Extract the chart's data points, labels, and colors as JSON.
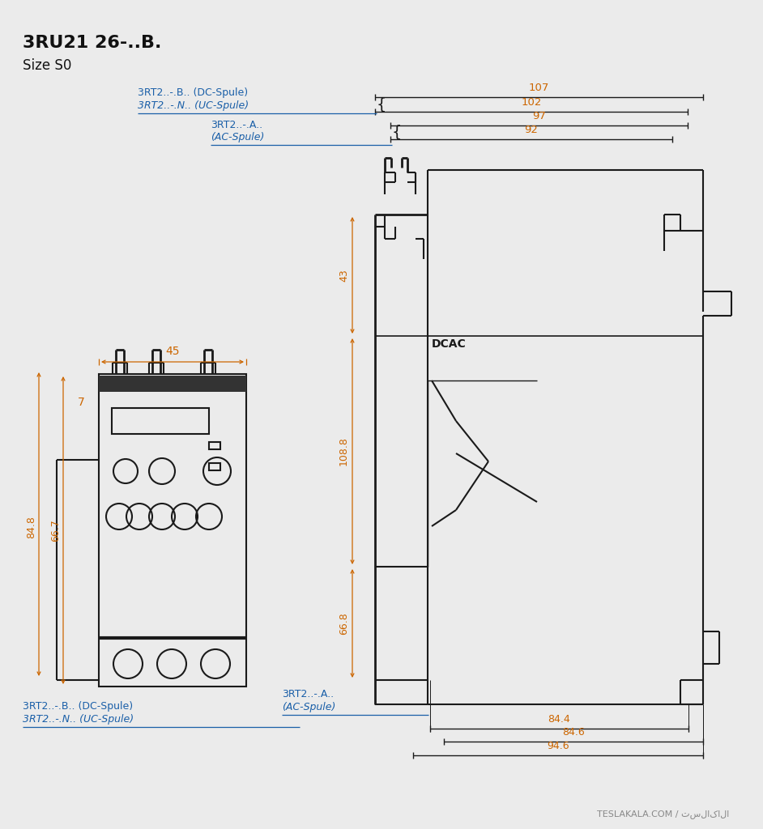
{
  "title1": "3RU21 26-..B.",
  "title2": "Size S0",
  "bg_color": "#ebebeb",
  "line_color": "#1a1a1a",
  "dim_color": "#cc6600",
  "text_color": "#111111",
  "blue_text": "#1a5fa8",
  "footer": "TESLAKALA.COM / تسلاکالا",
  "label_dc": "3RT2..-.B.. (DC-Spule)",
  "label_uc": "3RT2..-.N.. (UC-Spule)",
  "label_ac1": "3RT2..-.A..",
  "label_ac2": "(AC-Spule)",
  "label_bottom_dc": "3RT2..-.B.. (DC-Spule)",
  "label_bottom_uc": "3RT2..-.N.. (UC-Spule)",
  "label_bottom_ac1": "3RT2..-.A..",
  "label_bottom_ac2": "(AC-Spule)"
}
